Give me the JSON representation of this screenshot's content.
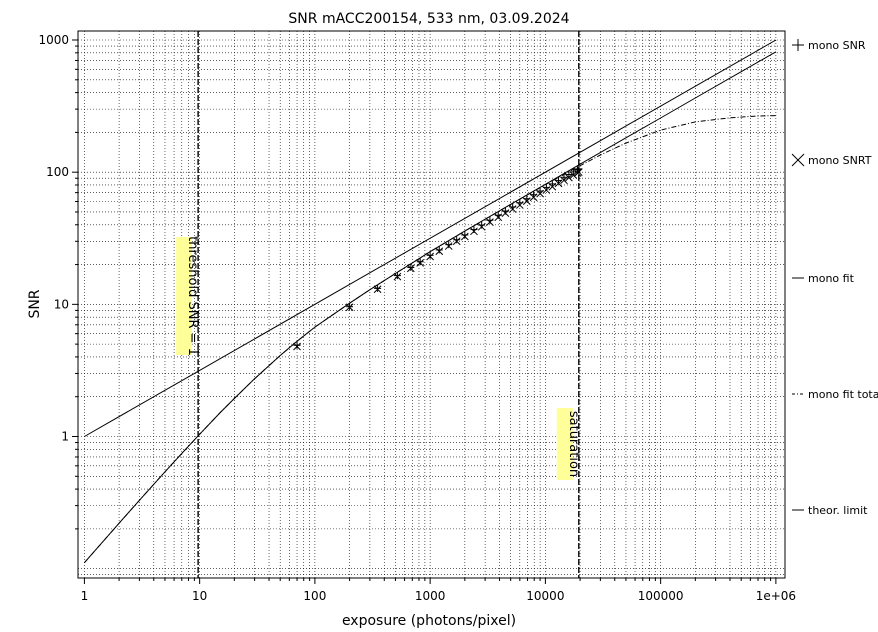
{
  "chart_data": {
    "type": "line",
    "title": "SNR mACC200154,  533 nm, 03.09.2024",
    "xlabel": "exposure (photons/pixel)",
    "ylabel": "SNR",
    "x_scale": "log",
    "y_scale": "log",
    "xlim": [
      0.88,
      1200000
    ],
    "ylim": [
      0.085,
      1170
    ],
    "x_ticks": [
      1,
      10,
      100,
      1000,
      10000,
      100000,
      1000000
    ],
    "x_tick_labels": [
      "1",
      "10",
      "100",
      "1000",
      "10000",
      "100000",
      "1e+06"
    ],
    "y_ticks": [
      1,
      10,
      100,
      1000
    ],
    "y_tick_labels": [
      "1",
      "10",
      "100",
      "1000"
    ],
    "grid": true,
    "legend_position": "right",
    "legend": [
      {
        "label": "mono SNR",
        "marker": "plus"
      },
      {
        "label": "mono SNRT",
        "marker": "x"
      },
      {
        "label": "mono fit",
        "style": "solid"
      },
      {
        "label": "mono fit total",
        "style": "dash-dot"
      },
      {
        "label": "theor. limit",
        "style": "solid"
      }
    ],
    "vertical_markers": [
      {
        "x": 9.7,
        "label": "threshold SNR = 1"
      },
      {
        "x": 19500,
        "label": "saturation"
      }
    ],
    "series": [
      {
        "name": "theor. limit",
        "style": "solid",
        "x": [
          1,
          1000000
        ],
        "y": [
          1,
          1000
        ]
      },
      {
        "name": "mono fit",
        "style": "solid",
        "x": [
          1,
          2,
          3,
          5,
          7,
          10,
          15,
          20,
          30,
          50,
          70,
          100,
          200,
          300,
          500,
          700,
          1000,
          2000,
          5000,
          10000,
          20000,
          50000,
          100000,
          200000,
          500000,
          1000000
        ],
        "y": [
          0.111,
          0.221,
          0.329,
          0.541,
          0.745,
          1.04,
          1.51,
          1.94,
          2.74,
          4.1,
          5.25,
          6.73,
          10.2,
          12.9,
          17.1,
          20.6,
          25.0,
          35.8,
          57.1,
          81.0,
          115.0,
          182.0,
          257.0,
          364.0,
          576.0,
          815.0
        ]
      },
      {
        "name": "mono fit total",
        "style": "dash-dot",
        "x": [
          1,
          2,
          3,
          5,
          7,
          10,
          15,
          20,
          30,
          50,
          70,
          100,
          200,
          300,
          500,
          700,
          1000,
          2000,
          5000,
          10000,
          20000,
          30000,
          50000,
          100000,
          200000,
          400000,
          700000,
          1000000
        ],
        "y": [
          0.111,
          0.221,
          0.329,
          0.541,
          0.745,
          1.04,
          1.51,
          1.94,
          2.74,
          4.1,
          5.25,
          6.73,
          10.2,
          12.9,
          17.1,
          20.6,
          25.0,
          35.8,
          57.0,
          80.5,
          112.0,
          135.0,
          166.0,
          208.0,
          240.0,
          258.0,
          266.0,
          268.0
        ]
      },
      {
        "name": "mono SNR",
        "style": "markers",
        "marker": "plus",
        "x": [
          70,
          200,
          350,
          520,
          680,
          820,
          1000,
          1200,
          1450,
          1700,
          2000,
          2400,
          2800,
          3300,
          3900,
          4500,
          5200,
          6000,
          6900,
          7900,
          9000,
          10200,
          11500,
          13000,
          14500,
          16000,
          17500,
          19000,
          19500
        ],
        "y": [
          4.9,
          9.6,
          13.2,
          16.5,
          19.0,
          21.0,
          23.5,
          25.8,
          28.3,
          30.8,
          33.5,
          36.8,
          39.8,
          43.3,
          47.2,
          50.8,
          54.6,
          58.7,
          63.0,
          67.5,
          72.0,
          76.7,
          81.5,
          86.6,
          91.5,
          96.0,
          100.5,
          104.5,
          106.0
        ]
      },
      {
        "name": "mono SNRT",
        "style": "markers",
        "marker": "x",
        "x": [
          70,
          200,
          350,
          520,
          680,
          820,
          1000,
          1200,
          1450,
          1700,
          2000,
          2400,
          2800,
          3300,
          3900,
          4500,
          5200,
          6000,
          6900,
          7900,
          9000,
          10200,
          11500,
          13000,
          14500,
          16000,
          17500,
          19000,
          19500
        ],
        "y": [
          4.8,
          9.5,
          13.0,
          16.2,
          18.7,
          20.6,
          23.0,
          25.2,
          27.6,
          30.0,
          32.6,
          35.7,
          38.6,
          41.9,
          45.6,
          49.0,
          52.6,
          56.4,
          60.4,
          64.6,
          68.8,
          73.2,
          77.6,
          82.3,
          86.8,
          91.0,
          95.0,
          98.6,
          100.0
        ]
      }
    ]
  }
}
